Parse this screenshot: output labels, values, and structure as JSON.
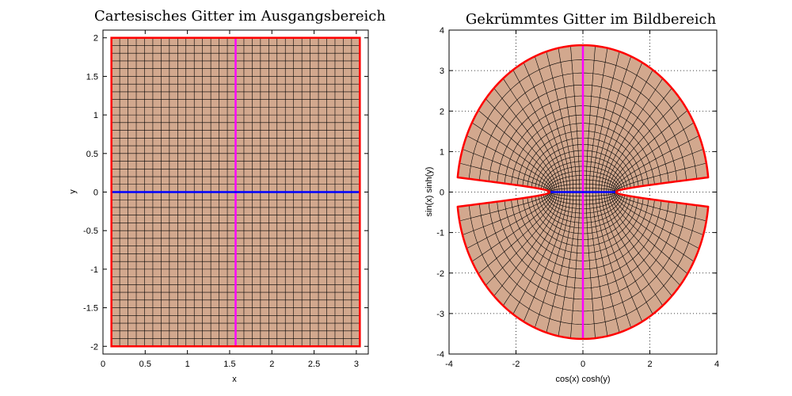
{
  "chart_data": [
    {
      "type": "line",
      "title": "Cartesisches Gitter im Ausgangsbereich",
      "xlabel": "x",
      "ylabel": "y",
      "xlim": [
        0,
        3.14159
      ],
      "ylim": [
        -2.1,
        2.1
      ],
      "xticks": [
        "0",
        "0.5",
        "1",
        "1.5",
        "2",
        "2.5",
        "3"
      ],
      "yticks": [
        "-2",
        "-1.5",
        "-1",
        "-0.5",
        "0",
        "0.5",
        "1",
        "1.5",
        "2"
      ],
      "grid": false,
      "domain": {
        "x": [
          0.1,
          3.0416
        ],
        "y": [
          -2,
          2
        ]
      },
      "grid_lines": {
        "x_count": 31,
        "y_count": 41
      },
      "highlight": [
        {
          "orientation": "vertical",
          "value": 1.5708,
          "color": "#ff00ff"
        },
        {
          "orientation": "horizontal",
          "value": 0,
          "color": "#0000ff"
        }
      ],
      "colors": {
        "fill": "#d2a88e",
        "border": "#ff0000",
        "grid": "#000000"
      }
    },
    {
      "type": "line",
      "title": "Gekrümmtes Gitter im Bildbereich",
      "xlabel": "cos(x) cosh(y)",
      "ylabel": "sin(x) sinh(y)",
      "xlim": [
        -4,
        4
      ],
      "ylim": [
        -4,
        4
      ],
      "xticks": [
        "-4",
        "-2",
        "0",
        "2",
        "4"
      ],
      "yticks": [
        "-4",
        "-3",
        "-2",
        "-1",
        "0",
        "1",
        "2",
        "3",
        "4"
      ],
      "grid": true,
      "mapping": "u = cos(x) cosh(y), v = sin(x) sinh(y)",
      "colors": {
        "fill": "#d2a88e",
        "border": "#ff0000",
        "grid": "#000000",
        "vertical": "#ff00ff",
        "horizontal": "#0000ff"
      }
    }
  ]
}
